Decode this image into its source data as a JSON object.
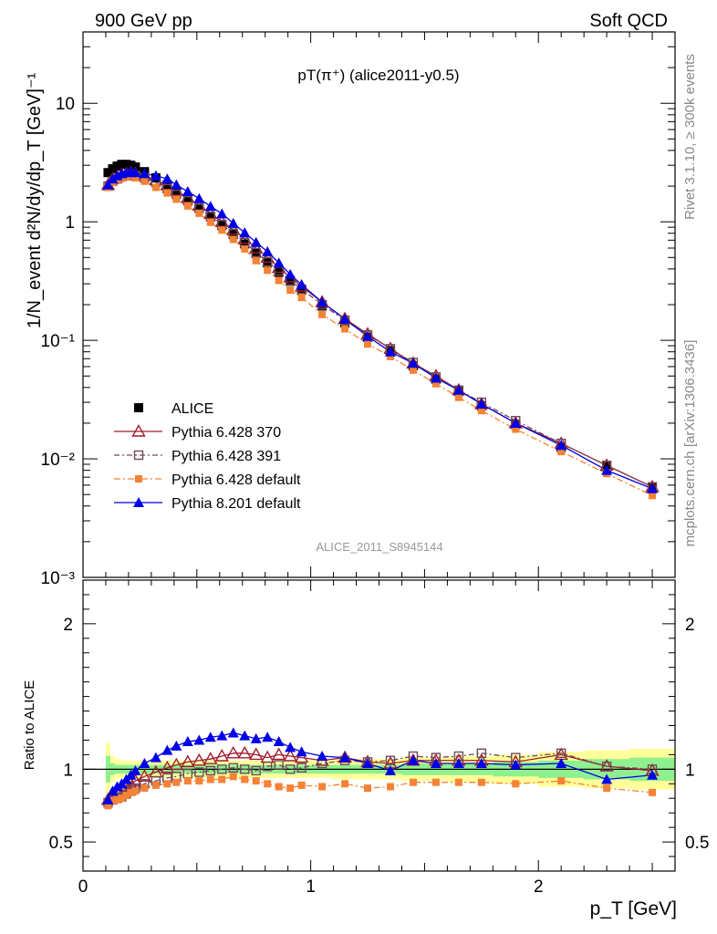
{
  "header": {
    "left": "900 GeV pp",
    "right": "Soft QCD"
  },
  "side_text": {
    "rivet": "Rivet 3.1.10, ≥ 300k events",
    "mcplots": "mcplots.cern.ch [arXiv:1306.3436]"
  },
  "watermark": "ALICE_2011_S8945144",
  "chart_data": [
    {
      "type": "scatter",
      "title": "pT(π⁺) (alice2011-y0.5)",
      "xlabel": "p_T [GeV]",
      "ylabel": "1/N_event d²N/dy/dp_T [GeV]⁻¹",
      "log_y": true,
      "xlim": [
        0,
        2.6
      ],
      "ylim": [
        0.001,
        40
      ],
      "y_tick_labels": [
        "10⁻³",
        "10⁻²",
        "10⁻¹",
        "1",
        "10"
      ],
      "legend_position": "bottom-left",
      "x": [
        0.11,
        0.13,
        0.15,
        0.17,
        0.19,
        0.21,
        0.23,
        0.27,
        0.32,
        0.37,
        0.41,
        0.46,
        0.51,
        0.56,
        0.61,
        0.66,
        0.71,
        0.76,
        0.81,
        0.86,
        0.91,
        0.96,
        1.05,
        1.15,
        1.25,
        1.35,
        1.45,
        1.55,
        1.65,
        1.75,
        1.9,
        2.1,
        2.3,
        2.5
      ],
      "series": [
        {
          "name": "ALICE",
          "color": "#000000",
          "marker": "square",
          "values": [
            2.6,
            2.8,
            2.95,
            3.05,
            3.05,
            3.0,
            2.9,
            2.65,
            2.35,
            2.05,
            1.8,
            1.55,
            1.3,
            1.1,
            0.93,
            0.78,
            0.65,
            0.54,
            0.45,
            0.375,
            0.315,
            0.265,
            0.195,
            0.14,
            0.106,
            0.082,
            0.061,
            0.047,
            0.037,
            0.028,
            0.0195,
            0.0125,
            0.0086,
            0.0058
          ]
        },
        {
          "name": "Pythia 6.428 370",
          "color": "#a01c2c",
          "marker": "triangle-open",
          "values": [
            2.05,
            2.3,
            2.4,
            2.5,
            2.55,
            2.6,
            2.55,
            2.45,
            2.25,
            2.05,
            1.83,
            1.6,
            1.37,
            1.17,
            1.0,
            0.86,
            0.72,
            0.6,
            0.5,
            0.41,
            0.34,
            0.285,
            0.21,
            0.152,
            0.113,
            0.085,
            0.064,
            0.05,
            0.038,
            0.029,
            0.02,
            0.0135,
            0.0088,
            0.0058
          ]
        },
        {
          "name": "Pythia 6.428 391",
          "color": "#6f4a5c",
          "marker": "square-open",
          "values": [
            2.0,
            2.2,
            2.3,
            2.4,
            2.45,
            2.5,
            2.45,
            2.35,
            2.15,
            1.9,
            1.7,
            1.5,
            1.3,
            1.11,
            0.95,
            0.8,
            0.67,
            0.55,
            0.46,
            0.385,
            0.32,
            0.27,
            0.2,
            0.148,
            0.111,
            0.085,
            0.065,
            0.049,
            0.038,
            0.03,
            0.021,
            0.0135,
            0.0088,
            0.0058
          ]
        },
        {
          "name": "Pythia 6.428 default",
          "color": "#f58235",
          "marker": "square-small",
          "values": [
            1.95,
            2.15,
            2.25,
            2.35,
            2.4,
            2.45,
            2.35,
            2.2,
            1.95,
            1.75,
            1.55,
            1.36,
            1.18,
            0.99,
            0.85,
            0.71,
            0.59,
            0.47,
            0.39,
            0.32,
            0.265,
            0.23,
            0.165,
            0.125,
            0.093,
            0.073,
            0.056,
            0.043,
            0.033,
            0.0255,
            0.0178,
            0.0115,
            0.0075,
            0.0049
          ]
        },
        {
          "name": "Pythia 8.201 default",
          "color": "#0000e6",
          "marker": "triangle",
          "values": [
            2.05,
            2.3,
            2.45,
            2.55,
            2.6,
            2.65,
            2.6,
            2.55,
            2.45,
            2.3,
            2.05,
            1.8,
            1.57,
            1.35,
            1.17,
            0.97,
            0.81,
            0.67,
            0.56,
            0.45,
            0.36,
            0.295,
            0.21,
            0.151,
            0.108,
            0.08,
            0.064,
            0.048,
            0.038,
            0.029,
            0.02,
            0.013,
            0.008,
            0.0056
          ]
        }
      ]
    },
    {
      "type": "scatter",
      "ylabel": "Ratio to ALICE",
      "xlabel": "p_T [GeV]",
      "xlim": [
        0,
        2.6
      ],
      "ylim": [
        0.3,
        2.3
      ],
      "x_tick_labels": [
        "0",
        "1",
        "2"
      ],
      "y_tick_labels": [
        "0.5",
        "1",
        "2"
      ],
      "reference_line": 1,
      "band_colors": {
        "inner": "#8ff08f",
        "outer": "#ffff99"
      },
      "x": [
        0.11,
        0.13,
        0.15,
        0.17,
        0.19,
        0.21,
        0.23,
        0.27,
        0.32,
        0.37,
        0.41,
        0.46,
        0.51,
        0.56,
        0.61,
        0.66,
        0.71,
        0.76,
        0.81,
        0.86,
        0.91,
        0.96,
        1.05,
        1.15,
        1.25,
        1.35,
        1.45,
        1.55,
        1.65,
        1.75,
        1.9,
        2.1,
        2.3,
        2.5
      ],
      "bands": {
        "edges": [
          0.1,
          0.12,
          0.14,
          0.16,
          0.18,
          0.2,
          0.22,
          0.25,
          0.3,
          0.35,
          0.4,
          0.45,
          0.5,
          0.55,
          0.6,
          0.65,
          0.7,
          0.75,
          0.8,
          0.85,
          0.9,
          0.95,
          1.0,
          1.1,
          1.2,
          1.3,
          1.4,
          1.5,
          1.6,
          1.7,
          1.8,
          2.0,
          2.2,
          2.4,
          2.6
        ],
        "outer": [
          0.18,
          0.09,
          0.07,
          0.06,
          0.06,
          0.06,
          0.06,
          0.06,
          0.06,
          0.06,
          0.06,
          0.06,
          0.06,
          0.06,
          0.06,
          0.06,
          0.06,
          0.06,
          0.06,
          0.06,
          0.06,
          0.06,
          0.06,
          0.07,
          0.07,
          0.07,
          0.08,
          0.08,
          0.09,
          0.09,
          0.1,
          0.12,
          0.13,
          0.14
        ],
        "inner": [
          0.09,
          0.04,
          0.03,
          0.03,
          0.03,
          0.03,
          0.03,
          0.03,
          0.03,
          0.03,
          0.03,
          0.03,
          0.03,
          0.03,
          0.03,
          0.03,
          0.03,
          0.03,
          0.03,
          0.03,
          0.03,
          0.03,
          0.03,
          0.03,
          0.03,
          0.03,
          0.04,
          0.04,
          0.04,
          0.04,
          0.05,
          0.06,
          0.07,
          0.08
        ]
      },
      "series": [
        {
          "name": "Pythia 6.428 370",
          "color": "#a01c2c",
          "marker": "triangle-open",
          "values": [
            0.79,
            0.82,
            0.85,
            0.87,
            0.88,
            0.9,
            0.92,
            0.95,
            0.98,
            1.01,
            1.03,
            1.05,
            1.06,
            1.07,
            1.09,
            1.11,
            1.11,
            1.1,
            1.08,
            1.1,
            1.09,
            1.08,
            1.06,
            1.08,
            1.05,
            1.04,
            1.06,
            1.06,
            1.06,
            1.06,
            1.05,
            1.1,
            1.02,
            0.99
          ]
        },
        {
          "name": "Pythia 6.428 391",
          "color": "#6f4a5c",
          "marker": "square-open",
          "values": [
            0.77,
            0.79,
            0.8,
            0.81,
            0.83,
            0.85,
            0.87,
            0.9,
            0.92,
            0.94,
            0.95,
            0.97,
            0.98,
            0.99,
            1.0,
            1.01,
            1.0,
            0.99,
            1.02,
            1.03,
            1.0,
            1.01,
            1.04,
            1.06,
            1.05,
            1.06,
            1.09,
            1.08,
            1.09,
            1.11,
            1.08,
            1.11,
            1.02,
            1.0
          ]
        },
        {
          "name": "Pythia 6.428 default",
          "color": "#f58235",
          "marker": "square-small",
          "values": [
            0.75,
            0.78,
            0.79,
            0.8,
            0.82,
            0.84,
            0.85,
            0.87,
            0.89,
            0.9,
            0.91,
            0.92,
            0.92,
            0.93,
            0.93,
            0.95,
            0.93,
            0.92,
            0.9,
            0.88,
            0.87,
            0.89,
            0.88,
            0.9,
            0.87,
            0.88,
            0.91,
            0.91,
            0.91,
            0.91,
            0.9,
            0.92,
            0.87,
            0.84
          ]
        },
        {
          "name": "Pythia 8.201 default",
          "color": "#0000e6",
          "marker": "triangle",
          "values": [
            0.79,
            0.85,
            0.88,
            0.9,
            0.93,
            0.96,
            0.99,
            1.04,
            1.08,
            1.13,
            1.16,
            1.19,
            1.2,
            1.22,
            1.23,
            1.25,
            1.23,
            1.21,
            1.22,
            1.19,
            1.15,
            1.12,
            1.09,
            1.08,
            1.04,
            0.99,
            1.06,
            1.04,
            1.04,
            1.04,
            1.03,
            1.04,
            0.93,
            0.96
          ]
        }
      ]
    }
  ]
}
